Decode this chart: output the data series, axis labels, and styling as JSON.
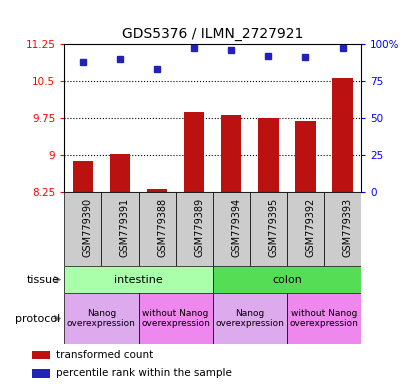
{
  "title": "GDS5376 / ILMN_2727921",
  "samples": [
    "GSM779390",
    "GSM779391",
    "GSM779388",
    "GSM779389",
    "GSM779394",
    "GSM779395",
    "GSM779392",
    "GSM779393"
  ],
  "bar_values": [
    8.88,
    9.01,
    8.3,
    9.87,
    9.8,
    9.75,
    9.68,
    10.55
  ],
  "dot_values": [
    88,
    90,
    83,
    97,
    96,
    92,
    91,
    97
  ],
  "ylim_left": [
    8.25,
    11.25
  ],
  "ylim_right": [
    0,
    100
  ],
  "yticks_left": [
    8.25,
    9.0,
    9.75,
    10.5,
    11.25
  ],
  "ytick_labels_left": [
    "8.25",
    "9",
    "9.75",
    "10.5",
    "11.25"
  ],
  "yticks_right": [
    0,
    25,
    50,
    75,
    100
  ],
  "ytick_labels_right": [
    "0",
    "25",
    "50",
    "75",
    "100%"
  ],
  "hlines": [
    9.0,
    9.75,
    10.5
  ],
  "bar_color": "#bb1111",
  "dot_color": "#2222bb",
  "bar_bottom": 8.25,
  "tissue_groups": [
    {
      "label": "intestine",
      "start": 0,
      "end": 4,
      "color": "#aaffaa"
    },
    {
      "label": "colon",
      "start": 4,
      "end": 8,
      "color": "#55dd55"
    }
  ],
  "protocol_groups": [
    {
      "label": "Nanog\noverexpression",
      "start": 0,
      "end": 2,
      "color": "#ddaaee"
    },
    {
      "label": "without Nanog\noverexpression",
      "start": 2,
      "end": 4,
      "color": "#ee88ee"
    },
    {
      "label": "Nanog\noverexpression",
      "start": 4,
      "end": 6,
      "color": "#ddaaee"
    },
    {
      "label": "without Nanog\noverexpression",
      "start": 6,
      "end": 8,
      "color": "#ee88ee"
    }
  ],
  "tissue_label": "tissue",
  "protocol_label": "protocol",
  "legend_items": [
    {
      "label": "transformed count",
      "color": "#bb1111"
    },
    {
      "label": "percentile rank within the sample",
      "color": "#2222bb"
    }
  ],
  "title_fontsize": 10,
  "tick_fontsize": 7.5,
  "sample_fontsize": 7,
  "annot_fontsize": 8,
  "legend_fontsize": 7.5
}
